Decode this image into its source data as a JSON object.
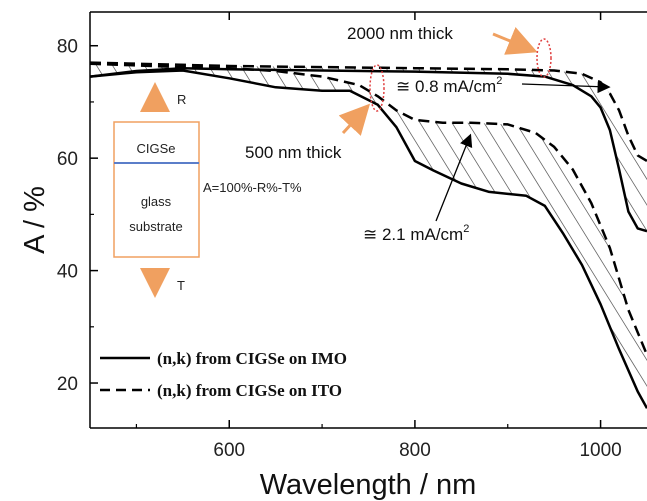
{
  "chart_data": {
    "type": "line",
    "xlabel": "Wavelength / nm",
    "ylabel": "A / %",
    "xlim": [
      450,
      1050
    ],
    "ylim": [
      12,
      86
    ],
    "xticks": [
      600,
      800,
      1000
    ],
    "yticks": [
      20,
      40,
      60,
      80
    ],
    "grid": false,
    "legend_placement": "bottom-left",
    "series": [
      {
        "name": "(n,k) from CIGSe on IMO",
        "style": "solid",
        "thickness": "500 nm",
        "x": [
          450,
          500,
          550,
          600,
          650,
          700,
          730,
          760,
          780,
          800,
          820,
          850,
          880,
          920,
          940,
          960,
          980,
          1000,
          1020,
          1040,
          1050
        ],
        "y": [
          74.5,
          75.3,
          75.6,
          74.2,
          72.6,
          72.0,
          72.0,
          69.5,
          65.5,
          59.5,
          57.8,
          55.5,
          54.0,
          53.3,
          51.5,
          46.5,
          41.0,
          34.0,
          26.0,
          18.5,
          15.5
        ]
      },
      {
        "name": "(n,k) from CIGSe on IMO",
        "style": "solid",
        "thickness": "2000 nm",
        "x": [
          450,
          500,
          550,
          600,
          700,
          800,
          900,
          940,
          970,
          990,
          1000,
          1010,
          1020,
          1030,
          1040,
          1050
        ],
        "y": [
          74.5,
          75.5,
          76.0,
          75.8,
          75.6,
          75.4,
          75.0,
          74.5,
          73.0,
          71.0,
          69.0,
          65.0,
          58.0,
          50.5,
          47.5,
          47.0
        ]
      },
      {
        "name": "(n,k) from CIGSe on ITO",
        "style": "dashed",
        "thickness": "500 nm",
        "x": [
          450,
          500,
          550,
          600,
          650,
          700,
          740,
          760,
          780,
          800,
          830,
          860,
          900,
          930,
          950,
          970,
          990,
          1010,
          1030,
          1050
        ],
        "y": [
          76.8,
          76.5,
          76.2,
          76.0,
          75.5,
          74.5,
          73.0,
          71.0,
          68.5,
          66.8,
          66.3,
          66.3,
          66.0,
          64.5,
          62.0,
          58.0,
          52.0,
          44.0,
          33.0,
          25.0
        ]
      },
      {
        "name": "(n,k) from CIGSe on ITO",
        "style": "dashed",
        "thickness": "2000 nm",
        "x": [
          450,
          500,
          600,
          700,
          800,
          900,
          950,
          980,
          1000,
          1010,
          1020,
          1030,
          1040,
          1050
        ],
        "y": [
          77.0,
          76.8,
          76.4,
          76.2,
          76.0,
          75.8,
          75.6,
          75.0,
          73.5,
          71.5,
          68.5,
          64.0,
          60.5,
          59.5
        ]
      }
    ],
    "annotations": {
      "thick_2000": "2000 nm thick",
      "thick_500": "500 nm thick",
      "current_small": "≅ 0.8 mA/cm",
      "current_small_sup": "2",
      "current_large": "≅ 2.1 mA/cm",
      "current_large_sup": "2"
    },
    "inset": {
      "r_label": "R",
      "t_label": "T",
      "layer_top": "CIGSe",
      "layer_bottom_1": "glass",
      "layer_bottom_2": "substrate",
      "formula": "A=100%-R%-T%"
    },
    "colors": {
      "lines": "#000000",
      "arrow_orange": "#f0a060",
      "inset_border": "#f0a060",
      "inset_interface": "#5b7ec9",
      "ellipse": "#e04040",
      "hatch": "#666666"
    }
  }
}
